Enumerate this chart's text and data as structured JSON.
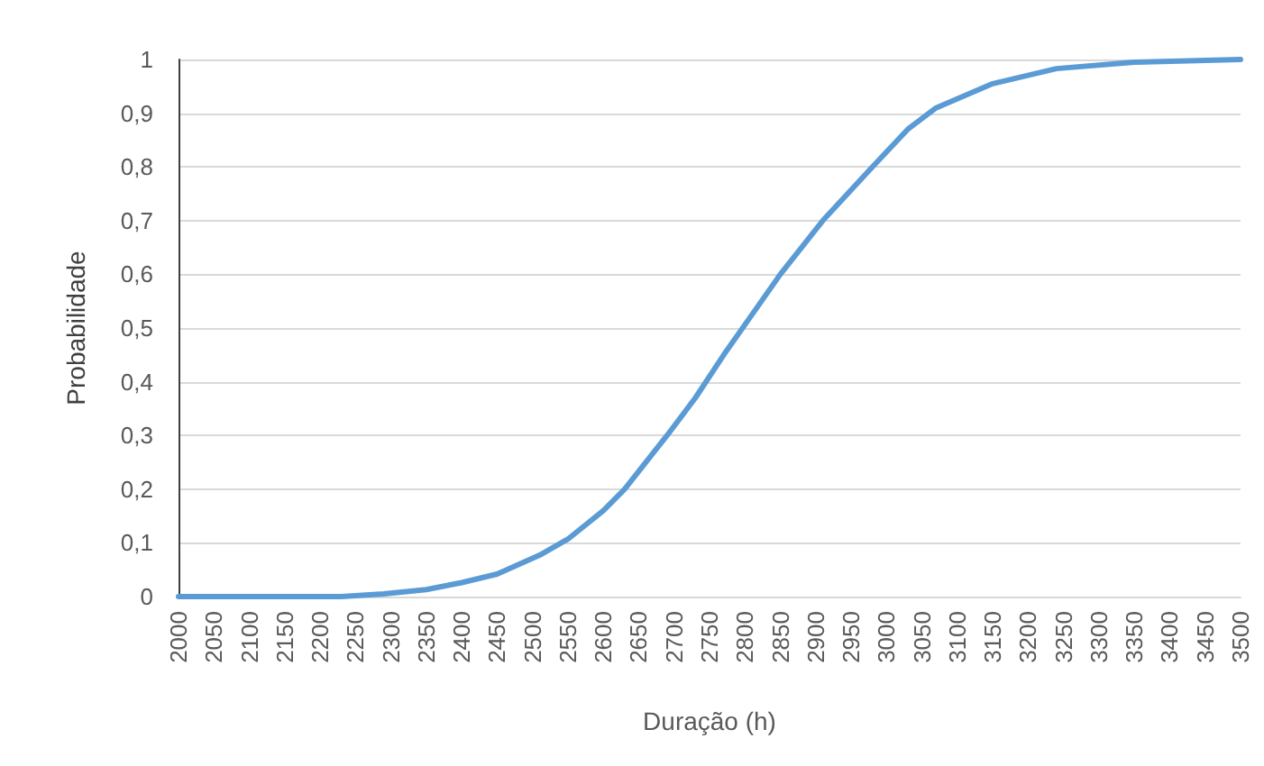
{
  "chart_data": {
    "type": "line",
    "xlabel": "Duração (h)",
    "ylabel": "Probabilidade",
    "x": [
      2000,
      2230,
      2290,
      2350,
      2400,
      2450,
      2510,
      2550,
      2600,
      2630,
      2690,
      2730,
      2770,
      2810,
      2850,
      2910,
      2980,
      3030,
      3070,
      3150,
      3240,
      3350,
      3500
    ],
    "series": [
      {
        "color": "#5b9bd5",
        "values": [
          0,
          0,
          0.005,
          0.013,
          0.026,
          0.042,
          0.077,
          0.107,
          0.16,
          0.2,
          0.3,
          0.37,
          0.45,
          0.525,
          0.6,
          0.7,
          0.8,
          0.87,
          0.91,
          0.955,
          0.983,
          0.995,
          1
        ]
      }
    ],
    "xlim": [
      2000,
      3500
    ],
    "xticks": [
      2000,
      2050,
      2100,
      2150,
      2200,
      2250,
      2300,
      2350,
      2400,
      2450,
      2500,
      2550,
      2600,
      2650,
      2700,
      2750,
      2800,
      2850,
      2900,
      2950,
      3000,
      3050,
      3100,
      3150,
      3200,
      3250,
      3300,
      3350,
      3400,
      3450,
      3500
    ],
    "ylim": [
      0,
      1
    ],
    "yticks": [
      0,
      {
        "value": 0.1,
        "label": "0,1"
      },
      {
        "value": 0.2,
        "label": "0,2"
      },
      {
        "value": 0.3,
        "label": "0,3"
      },
      {
        "value": 0.4,
        "label": "0,4"
      },
      {
        "value": 0.5,
        "label": "0,5"
      },
      {
        "value": 0.6,
        "label": "0,6"
      },
      {
        "value": 0.7,
        "label": "0,7"
      },
      {
        "value": 0.8,
        "label": "0,8"
      },
      {
        "value": 0.9,
        "label": "0,9"
      },
      1
    ],
    "grid": "y",
    "marker": "none",
    "line_style": "solid"
  }
}
